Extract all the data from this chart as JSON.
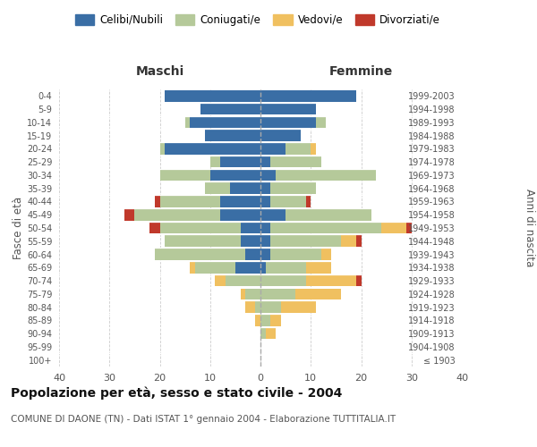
{
  "age_groups": [
    "100+",
    "95-99",
    "90-94",
    "85-89",
    "80-84",
    "75-79",
    "70-74",
    "65-69",
    "60-64",
    "55-59",
    "50-54",
    "45-49",
    "40-44",
    "35-39",
    "30-34",
    "25-29",
    "20-24",
    "15-19",
    "10-14",
    "5-9",
    "0-4"
  ],
  "birth_years": [
    "≤ 1903",
    "1904-1908",
    "1909-1913",
    "1914-1918",
    "1919-1923",
    "1924-1928",
    "1929-1933",
    "1934-1938",
    "1939-1943",
    "1944-1948",
    "1949-1953",
    "1954-1958",
    "1959-1963",
    "1964-1968",
    "1969-1973",
    "1974-1978",
    "1979-1983",
    "1984-1988",
    "1989-1993",
    "1994-1998",
    "1999-2003"
  ],
  "males": {
    "celibi": [
      0,
      0,
      0,
      0,
      0,
      0,
      0,
      5,
      3,
      4,
      4,
      8,
      8,
      6,
      10,
      8,
      19,
      11,
      14,
      12,
      19
    ],
    "coniugati": [
      0,
      0,
      0,
      0,
      1,
      3,
      7,
      8,
      18,
      15,
      16,
      17,
      12,
      5,
      10,
      2,
      1,
      0,
      1,
      0,
      0
    ],
    "vedovi": [
      0,
      0,
      0,
      1,
      2,
      1,
      2,
      1,
      0,
      0,
      0,
      0,
      0,
      0,
      0,
      0,
      0,
      0,
      0,
      0,
      0
    ],
    "divorziati": [
      0,
      0,
      0,
      0,
      0,
      0,
      0,
      0,
      0,
      0,
      2,
      2,
      1,
      0,
      0,
      0,
      0,
      0,
      0,
      0,
      0
    ]
  },
  "females": {
    "nubili": [
      0,
      0,
      0,
      0,
      0,
      0,
      0,
      1,
      2,
      2,
      2,
      5,
      2,
      2,
      3,
      2,
      5,
      8,
      11,
      11,
      19
    ],
    "coniugate": [
      0,
      0,
      1,
      2,
      4,
      7,
      9,
      8,
      10,
      14,
      22,
      17,
      7,
      9,
      20,
      10,
      5,
      0,
      2,
      0,
      0
    ],
    "vedove": [
      0,
      0,
      2,
      2,
      7,
      9,
      10,
      5,
      2,
      3,
      5,
      0,
      0,
      0,
      0,
      0,
      1,
      0,
      0,
      0,
      0
    ],
    "divorziate": [
      0,
      0,
      0,
      0,
      0,
      0,
      1,
      0,
      0,
      1,
      1,
      0,
      1,
      0,
      0,
      0,
      0,
      0,
      0,
      0,
      0
    ]
  },
  "colors": {
    "celibi": "#3a6ea5",
    "coniugati": "#b5c99a",
    "vedovi": "#f0c060",
    "divorziati": "#c0392b"
  },
  "title": "Popolazione per età, sesso e stato civile - 2004",
  "subtitle": "COMUNE DI DAONE (TN) - Dati ISTAT 1° gennaio 2004 - Elaborazione TUTTITALIA.IT",
  "xlabel_left": "Maschi",
  "xlabel_right": "Femmine",
  "ylabel_left": "Fasce di età",
  "ylabel_right": "Anni di nascita",
  "xlim": 40,
  "legend_labels": [
    "Celibi/Nubili",
    "Coniugati/e",
    "Vedovi/e",
    "Divorziati/e"
  ],
  "bg_color": "#ffffff",
  "grid_color": "#cccccc"
}
